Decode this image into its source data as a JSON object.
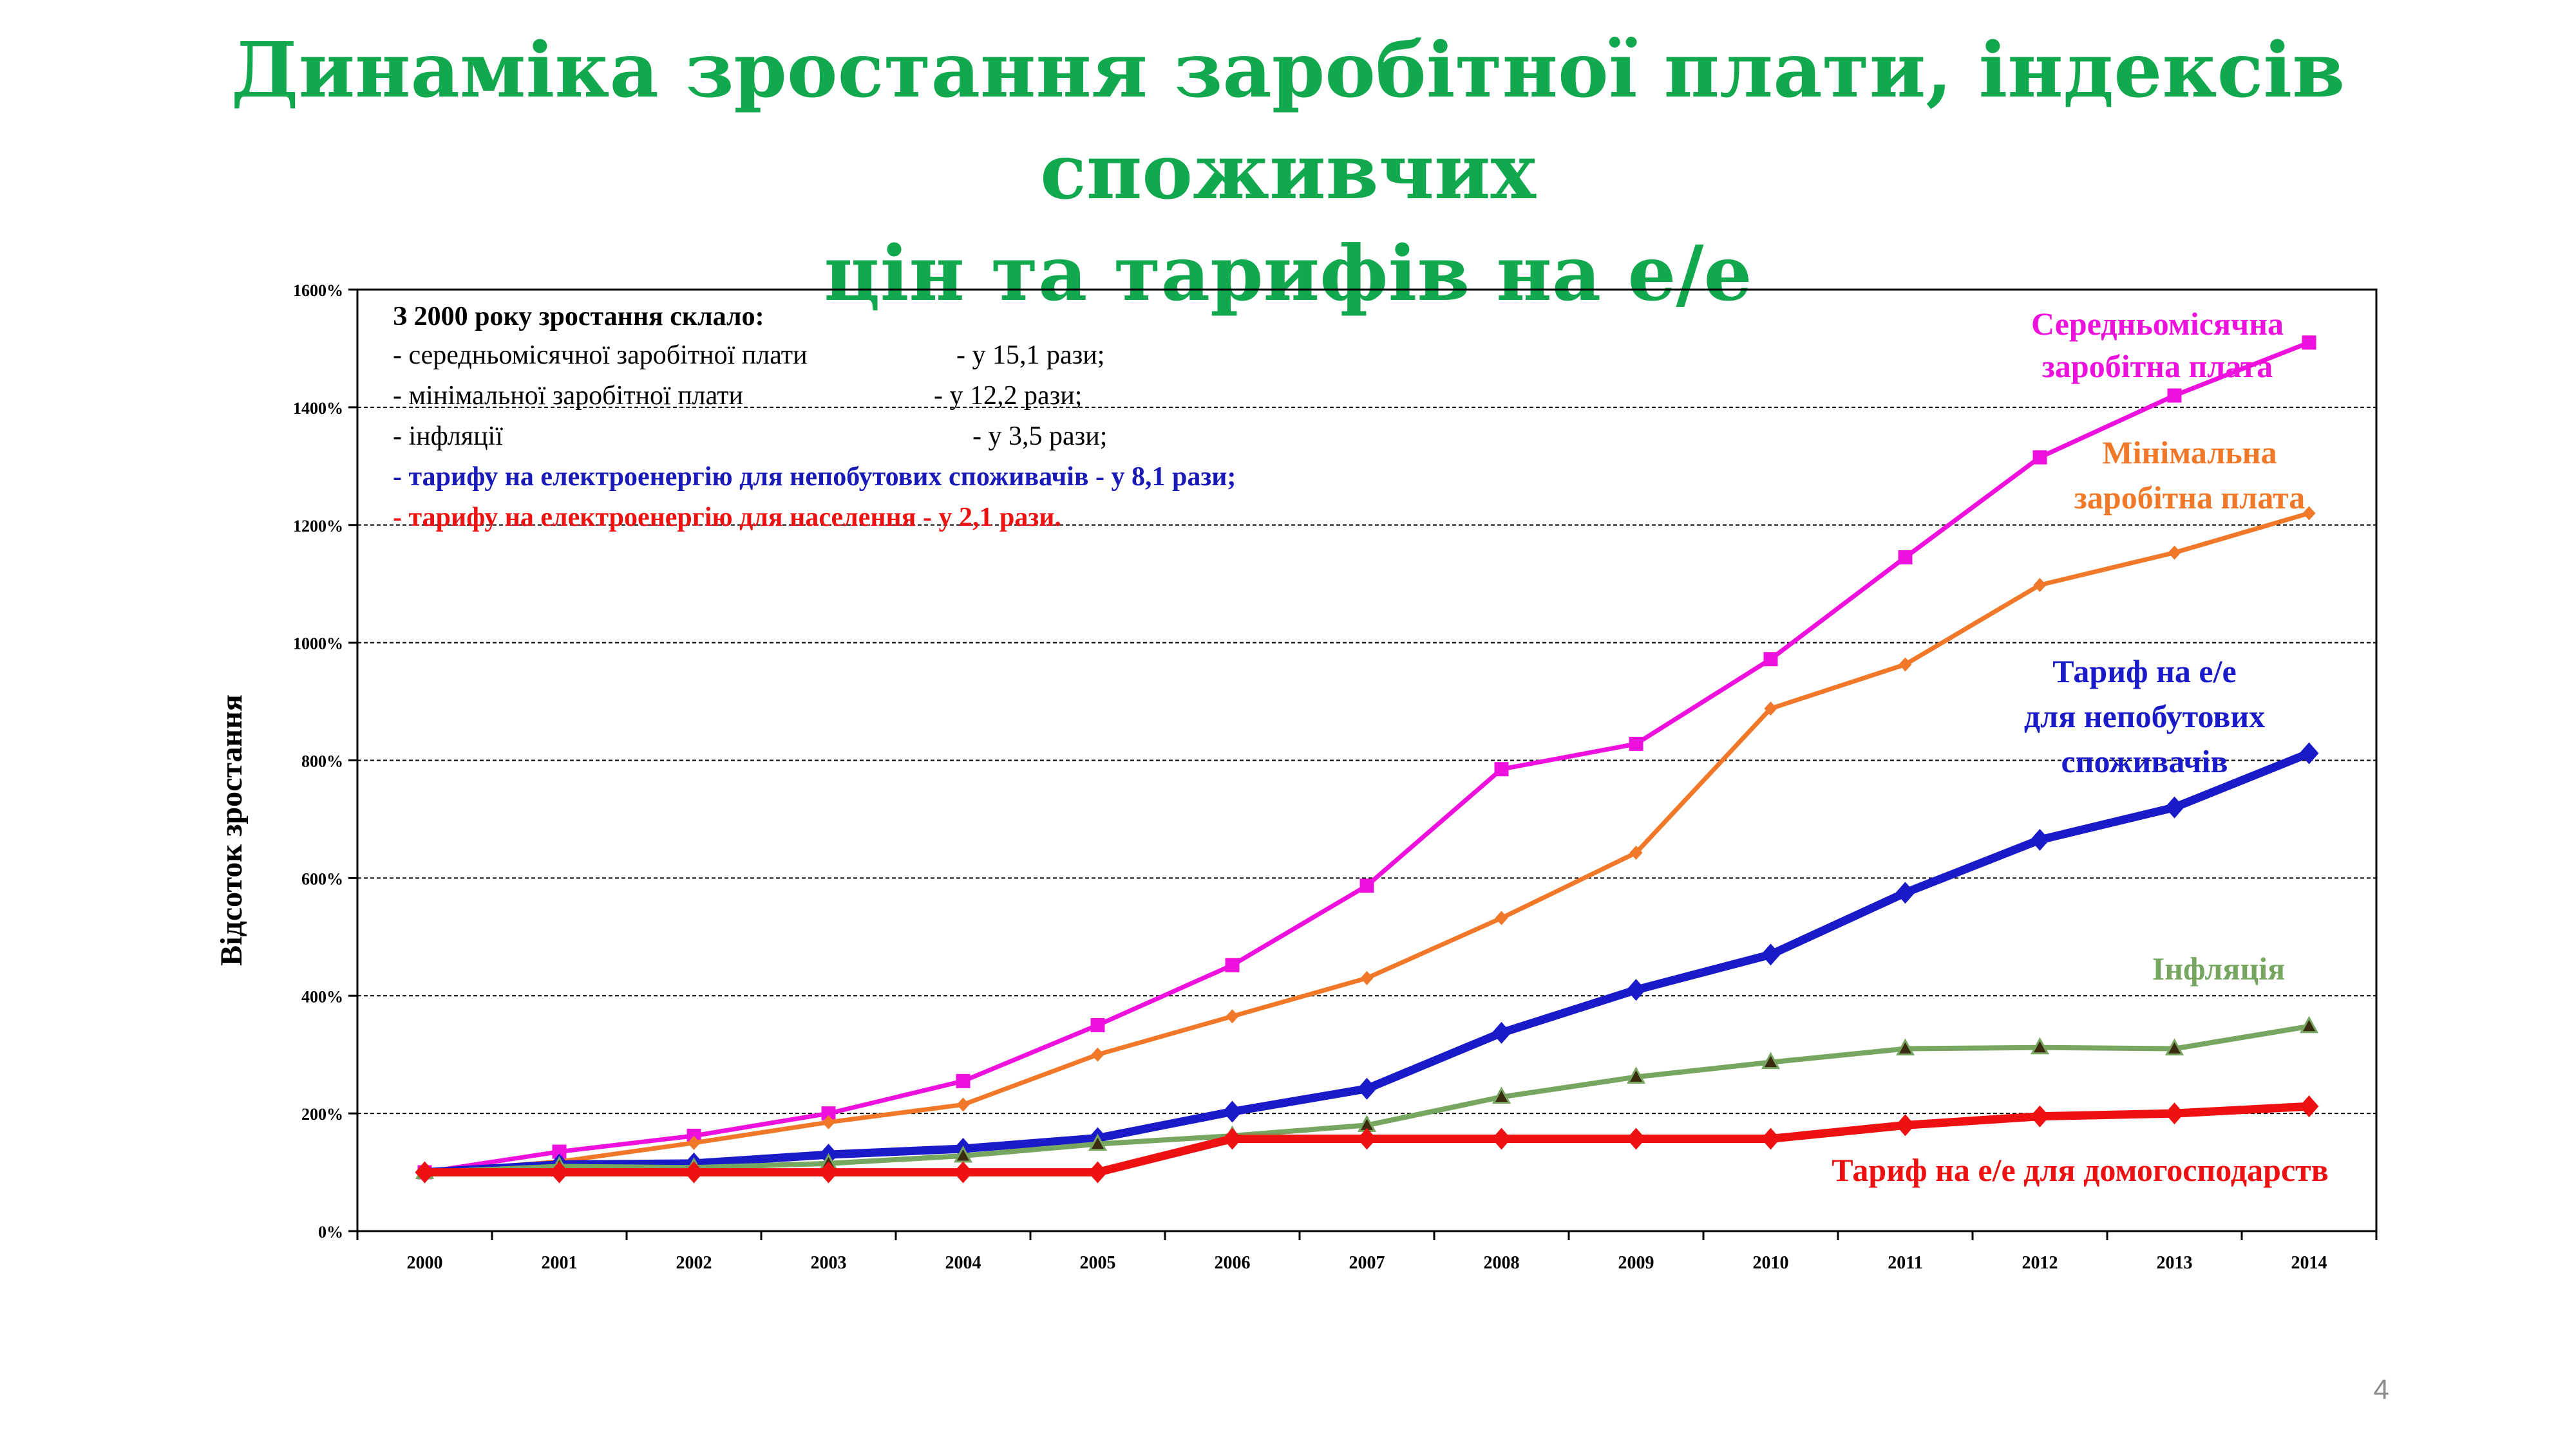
{
  "slide": {
    "title_line1": "Динаміка зростання заробітної плати, індексів споживчих",
    "title_line2": "цін та тарифів на е/е",
    "page_number": "4",
    "title_color": "#12a84e"
  },
  "note": {
    "heading": "З 2000 року зростання склало:",
    "lines": [
      {
        "label": "-   середньомісячної заробітної плати",
        "value": "- у 15,1 рази;",
        "color": "#000000",
        "bold": false
      },
      {
        "label": "-   мінімальної заробітної плати",
        "value": "- у 12,2 рази;",
        "color": "#000000",
        "bold": false
      },
      {
        "label": "- інфляції",
        "value": "- у  3,5 рази;",
        "color": "#000000",
        "bold": false
      },
      {
        "label": "- тарифу на електроенергію  для непобутових  споживачів  - у  8,1 рази;",
        "value": "",
        "color": "#1a1ab8",
        "bold": true
      },
      {
        "label": "- тарифу на електроенергію  для населення  - у 2,1 рази.",
        "value": "",
        "color": "#ee1111",
        "bold": true
      }
    ]
  },
  "chart_data": {
    "type": "line",
    "title": "",
    "xlabel": "",
    "ylabel": "Відсоток зростання",
    "x": [
      "2000",
      "2001",
      "2002",
      "2003",
      "2004",
      "2005",
      "2006",
      "2007",
      "2008",
      "2009",
      "2010",
      "2011",
      "2012",
      "2013",
      "2014"
    ],
    "ylim": [
      0,
      1600
    ],
    "yticks": [
      "0%",
      "200%",
      "400%",
      "600%",
      "800%",
      "1000%",
      "1200%",
      "1400%",
      "1600%"
    ],
    "grid": true,
    "legend": "inline labels",
    "series": [
      {
        "name": "Середньомісячна заробітна плата",
        "label_lines": [
          "Середньомісячна",
          "заробітна  плата"
        ],
        "color": "#ee10dd",
        "marker": "square",
        "stroke": "thin",
        "values": [
          100,
          135,
          162,
          200,
          255,
          350,
          452,
          587,
          785,
          828,
          972,
          1145,
          1315,
          1420,
          1510
        ]
      },
      {
        "name": "Мінімальна заробітна плата",
        "label_lines": [
          "Мінімальна",
          "заробітна плата"
        ],
        "color": "#f07828",
        "marker": "diamond-small",
        "stroke": "thin",
        "values": [
          100,
          118,
          150,
          185,
          215,
          300,
          365,
          430,
          532,
          643,
          888,
          963,
          1098,
          1153,
          1220
        ]
      },
      {
        "name": "Тариф на е/е для непобутових споживачів",
        "label_lines": [
          "Тариф  на е/е",
          "для непобутових",
          "споживачів"
        ],
        "color": "#1a1ac8",
        "marker": "diamond",
        "stroke": "thick",
        "values": [
          100,
          113,
          115,
          130,
          140,
          158,
          203,
          242,
          337,
          410,
          470,
          575,
          665,
          720,
          812
        ]
      },
      {
        "name": "Інфляція",
        "label_lines": [
          "Інфляція"
        ],
        "color": "#77a660",
        "marker": "triangle",
        "stroke": "medium",
        "values": [
          100,
          110,
          108,
          115,
          128,
          148,
          162,
          180,
          228,
          262,
          287,
          310,
          312,
          310,
          348
        ]
      },
      {
        "name": "Тариф на е/е для домогосподарств",
        "label_lines": [
          "Тариф  на е/е для домогосподарств"
        ],
        "color": "#ee1111",
        "marker": "diamond",
        "stroke": "thick",
        "values": [
          100,
          100,
          100,
          100,
          100,
          100,
          157,
          157,
          157,
          157,
          157,
          180,
          195,
          200,
          212
        ]
      }
    ]
  }
}
